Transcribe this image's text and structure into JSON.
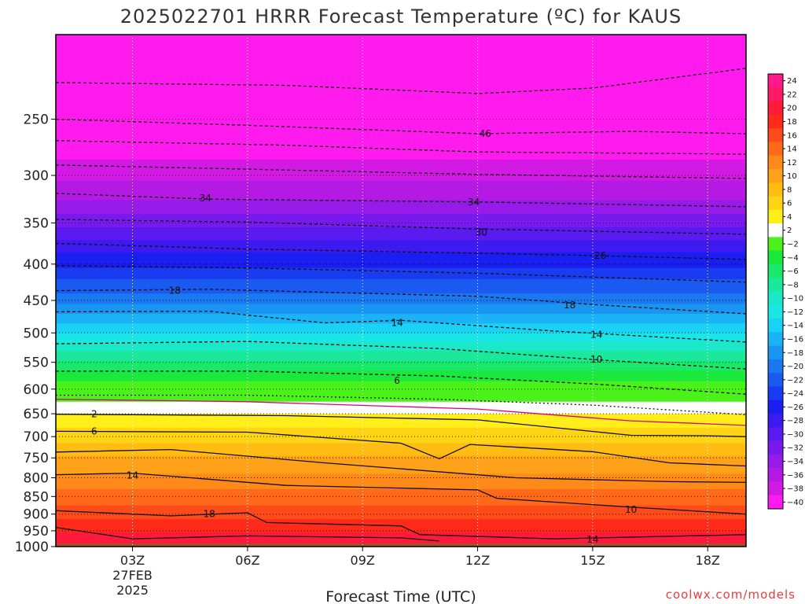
{
  "page": {
    "title": "2025022701 HRRR Forecast Temperature (ºC) for KAUS",
    "credit": "coolwx.com/models"
  },
  "chart_data": {
    "type": "heatmap",
    "title": "2025022701 HRRR Forecast Temperature (ºC) for KAUS",
    "xlabel": "Forecast Time (UTC)",
    "ylabel": "",
    "x_unit": "hours since 2025022701 init",
    "xlim": [
      0,
      18
    ],
    "x_ticks": [
      {
        "hour": 2,
        "label": "03Z",
        "sub": [
          "27FEB",
          "2025"
        ]
      },
      {
        "hour": 5,
        "label": "06Z"
      },
      {
        "hour": 8,
        "label": "09Z"
      },
      {
        "hour": 11,
        "label": "12Z"
      },
      {
        "hour": 14,
        "label": "15Z"
      },
      {
        "hour": 17,
        "label": "18Z"
      }
    ],
    "y_unit": "hPa",
    "y_scale": "log",
    "ylim": [
      1000,
      190
    ],
    "y_ticks": [
      250,
      300,
      350,
      400,
      450,
      500,
      550,
      600,
      650,
      700,
      750,
      800,
      850,
      900,
      950,
      1000
    ],
    "ground_level_hpa": 990,
    "grid": "dotted",
    "colorbar": {
      "labels": [
        24,
        22,
        20,
        18,
        16,
        14,
        12,
        10,
        8,
        6,
        4,
        2,
        -2,
        -4,
        -6,
        -8,
        -10,
        -12,
        -14,
        -16,
        -18,
        -20,
        -22,
        -24,
        -26,
        -28,
        -30,
        -32,
        -34,
        -36,
        -38,
        -40
      ],
      "colors": [
        "#ff1a8c",
        "#ff1a66",
        "#ff1a3c",
        "#ff2a1a",
        "#ff4a1a",
        "#ff6a1a",
        "#ff8a1a",
        "#ffa21a",
        "#ffbc12",
        "#ffd414",
        "#ffee1a",
        "#ffffff",
        "#4af21a",
        "#1ae83c",
        "#1ae86a",
        "#1ae89a",
        "#1ae8c8",
        "#1ae6e6",
        "#1ad2f6",
        "#1ab4f6",
        "#1a96f2",
        "#1a78f0",
        "#1a5af0",
        "#1a3cf0",
        "#1a1ef0",
        "#3c1af0",
        "#5a1af0",
        "#781aee",
        "#961ae8",
        "#b41ae4",
        "#d21ae4",
        "#ff1aee"
      ]
    },
    "isotherm_labels": [
      {
        "text": "46",
        "x": 11.2,
        "p": 262
      },
      {
        "text": "34",
        "x": 3.9,
        "p": 323
      },
      {
        "text": "34",
        "x": 10.9,
        "p": 327
      },
      {
        "text": "30",
        "x": 11.1,
        "p": 361
      },
      {
        "text": "26",
        "x": 14.2,
        "p": 389
      },
      {
        "text": "18",
        "x": 3.1,
        "p": 436
      },
      {
        "text": "18",
        "x": 13.4,
        "p": 457
      },
      {
        "text": "14",
        "x": 8.9,
        "p": 484
      },
      {
        "text": "14",
        "x": 14.1,
        "p": 503
      },
      {
        "text": "10",
        "x": 14.1,
        "p": 545
      },
      {
        "text": "6",
        "x": 8.9,
        "p": 584
      },
      {
        "text": "2",
        "x": 1.0,
        "p": 651
      },
      {
        "text": "6",
        "x": 1.0,
        "p": 688
      },
      {
        "text": "14",
        "x": 2.0,
        "p": 794
      },
      {
        "text": "18",
        "x": 4.0,
        "p": 899
      },
      {
        "text": "10",
        "x": 15.0,
        "p": 887
      },
      {
        "text": "14",
        "x": 14.0,
        "p": 977
      }
    ],
    "layers": [
      {
        "p_top": 190,
        "p_bottom": 285,
        "temp": -40
      },
      {
        "p_top": 285,
        "p_bottom": 305,
        "temp": -38
      },
      {
        "p_top": 305,
        "p_bottom": 325,
        "temp": -36
      },
      {
        "p_top": 325,
        "p_bottom": 340,
        "temp": -34
      },
      {
        "p_top": 340,
        "p_bottom": 355,
        "temp": -32
      },
      {
        "p_top": 355,
        "p_bottom": 370,
        "temp": -30
      },
      {
        "p_top": 370,
        "p_bottom": 385,
        "temp": -28
      },
      {
        "p_top": 385,
        "p_bottom": 405,
        "temp": -26
      },
      {
        "p_top": 405,
        "p_bottom": 420,
        "temp": -24
      },
      {
        "p_top": 420,
        "p_bottom": 440,
        "temp": -22
      },
      {
        "p_top": 440,
        "p_bottom": 455,
        "temp": -20
      },
      {
        "p_top": 455,
        "p_bottom": 470,
        "temp": -18
      },
      {
        "p_top": 470,
        "p_bottom": 485,
        "temp": -16
      },
      {
        "p_top": 485,
        "p_bottom": 500,
        "temp": -14
      },
      {
        "p_top": 500,
        "p_bottom": 515,
        "temp": -12
      },
      {
        "p_top": 515,
        "p_bottom": 530,
        "temp": -10
      },
      {
        "p_top": 530,
        "p_bottom": 548,
        "temp": -8
      },
      {
        "p_top": 548,
        "p_bottom": 565,
        "temp": -6
      },
      {
        "p_top": 565,
        "p_bottom": 585,
        "temp": -4
      },
      {
        "p_top": 585,
        "p_bottom": 625,
        "temp": -2
      },
      {
        "p_top": 625,
        "p_bottom": 650,
        "temp": 2
      },
      {
        "p_top": 650,
        "p_bottom": 680,
        "temp": 4
      },
      {
        "p_top": 680,
        "p_bottom": 715,
        "temp": 6
      },
      {
        "p_top": 715,
        "p_bottom": 745,
        "temp": 8
      },
      {
        "p_top": 745,
        "p_bottom": 790,
        "temp": 10
      },
      {
        "p_top": 790,
        "p_bottom": 830,
        "temp": 12
      },
      {
        "p_top": 830,
        "p_bottom": 875,
        "temp": 14
      },
      {
        "p_top": 875,
        "p_bottom": 915,
        "temp": 16
      },
      {
        "p_top": 915,
        "p_bottom": 955,
        "temp": 18
      },
      {
        "p_top": 955,
        "p_bottom": 990,
        "temp": 20
      }
    ],
    "isotherms": [
      {
        "style": "dashed",
        "values": [
          [
            0,
            222
          ],
          [
            6,
            224
          ],
          [
            11,
            230
          ],
          [
            14,
            226
          ],
          [
            18,
            212
          ]
        ]
      },
      {
        "style": "dashed",
        "values": [
          [
            0,
            250
          ],
          [
            5,
            255
          ],
          [
            11,
            262
          ],
          [
            15,
            260
          ],
          [
            18,
            262
          ]
        ]
      },
      {
        "style": "dashed",
        "values": [
          [
            0,
            268
          ],
          [
            6,
            272
          ],
          [
            11,
            278
          ],
          [
            18,
            280
          ]
        ]
      },
      {
        "style": "dashed",
        "values": [
          [
            0,
            290
          ],
          [
            5,
            294
          ],
          [
            11,
            299
          ],
          [
            18,
            303
          ]
        ]
      },
      {
        "style": "dashed",
        "values": [
          [
            0,
            318
          ],
          [
            4,
            324
          ],
          [
            11,
            327
          ],
          [
            18,
            332
          ]
        ]
      },
      {
        "style": "dashed",
        "values": [
          [
            0,
            346
          ],
          [
            5,
            349
          ],
          [
            11,
            357
          ],
          [
            18,
            363
          ]
        ]
      },
      {
        "style": "dashed",
        "values": [
          [
            0,
            374
          ],
          [
            5,
            381
          ],
          [
            11,
            386
          ],
          [
            14,
            389
          ],
          [
            18,
            394
          ]
        ]
      },
      {
        "style": "dashed",
        "values": [
          [
            0,
            402
          ],
          [
            5,
            405
          ],
          [
            11,
            412
          ],
          [
            18,
            424
          ]
        ]
      },
      {
        "style": "dashed",
        "values": [
          [
            0,
            436
          ],
          [
            4,
            434
          ],
          [
            11,
            444
          ],
          [
            14,
            456
          ],
          [
            18,
            470
          ]
        ]
      },
      {
        "style": "dashed",
        "values": [
          [
            0,
            467
          ],
          [
            4,
            466
          ],
          [
            7,
            484
          ],
          [
            9,
            480
          ],
          [
            13,
            497
          ],
          [
            18,
            515
          ]
        ]
      },
      {
        "style": "dashed",
        "values": [
          [
            0,
            518
          ],
          [
            5,
            514
          ],
          [
            10,
            526
          ],
          [
            14,
            545
          ],
          [
            18,
            562
          ]
        ]
      },
      {
        "style": "dashed",
        "values": [
          [
            0,
            566
          ],
          [
            5,
            566
          ],
          [
            10,
            575
          ],
          [
            14,
            590
          ],
          [
            18,
            610
          ]
        ]
      },
      {
        "style": "dotted",
        "values": [
          [
            0,
            612
          ],
          [
            5,
            612
          ],
          [
            10,
            620
          ],
          [
            14,
            632
          ],
          [
            18,
            652
          ]
        ]
      },
      {
        "style": "solid-magenta",
        "values": [
          [
            0,
            620
          ],
          [
            5,
            625
          ],
          [
            11,
            640
          ],
          [
            15,
            665
          ],
          [
            18,
            675
          ]
        ]
      },
      {
        "style": "solid",
        "values": [
          [
            0,
            651
          ],
          [
            6,
            654
          ],
          [
            11,
            663
          ],
          [
            15,
            697
          ],
          [
            17,
            698
          ],
          [
            18,
            700
          ]
        ]
      },
      {
        "style": "solid",
        "values": [
          [
            0,
            688
          ],
          [
            5,
            690
          ],
          [
            9,
            715
          ],
          [
            10,
            752
          ],
          [
            10.8,
            718
          ],
          [
            14,
            735
          ],
          [
            16,
            762
          ],
          [
            18,
            770
          ]
        ]
      },
      {
        "style": "solid",
        "values": [
          [
            0,
            736
          ],
          [
            3,
            730
          ],
          [
            7,
            762
          ],
          [
            12,
            800
          ],
          [
            16,
            810
          ],
          [
            18,
            812
          ]
        ]
      },
      {
        "style": "solid",
        "values": [
          [
            0,
            792
          ],
          [
            2,
            788
          ],
          [
            6,
            820
          ],
          [
            11,
            832
          ],
          [
            11.5,
            855
          ],
          [
            15,
            880
          ],
          [
            18,
            900
          ]
        ]
      },
      {
        "style": "solid",
        "values": [
          [
            0,
            890
          ],
          [
            3,
            905
          ],
          [
            5,
            896
          ],
          [
            5.5,
            925
          ],
          [
            9,
            935
          ],
          [
            9.5,
            962
          ],
          [
            13,
            975
          ],
          [
            18,
            962
          ]
        ]
      },
      {
        "style": "solid",
        "values": [
          [
            0,
            940
          ],
          [
            2,
            975
          ],
          [
            5,
            966
          ],
          [
            9,
            972
          ],
          [
            10,
            982
          ]
        ]
      }
    ]
  }
}
